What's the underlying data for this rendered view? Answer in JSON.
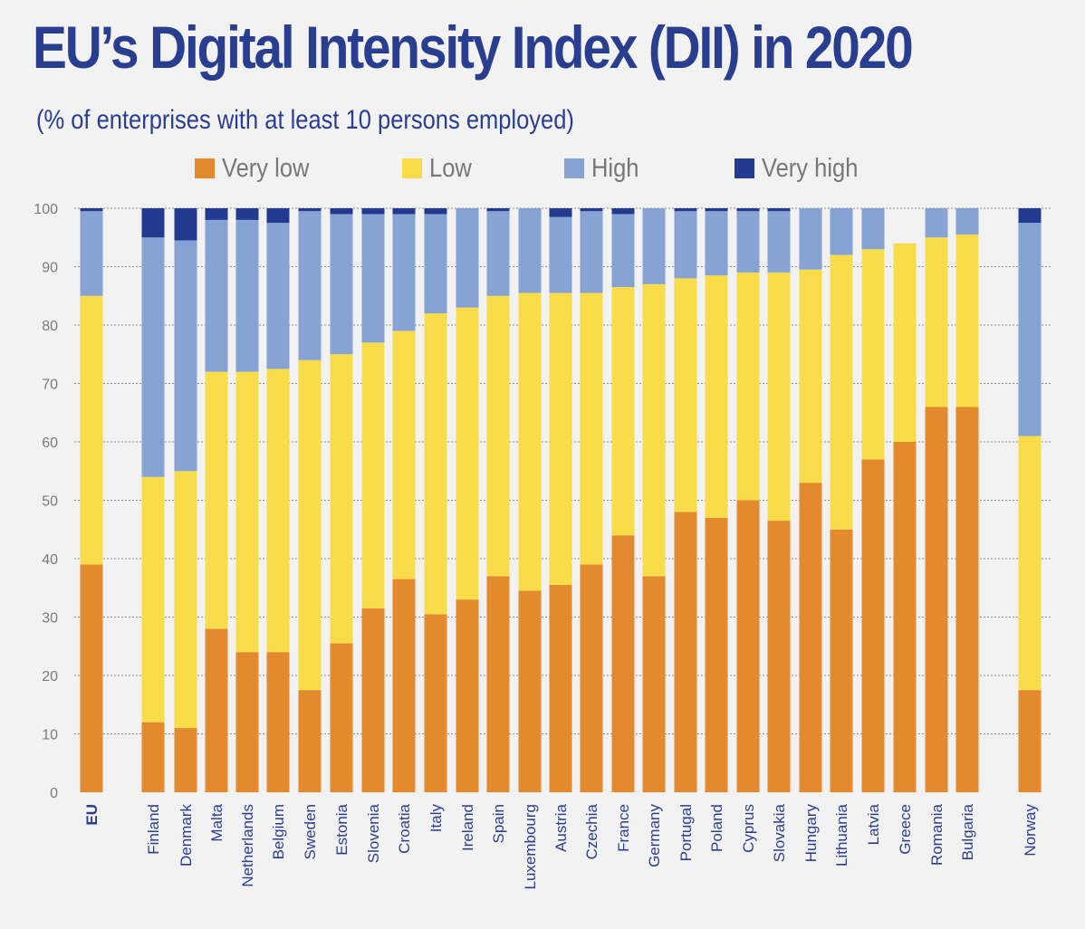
{
  "colors": {
    "very_low": "#e38a2f",
    "low": "#f9dc4a",
    "high": "#86a3d4",
    "very_high": "#223b91",
    "title": "#2a3e8f"
  },
  "chart_data": {
    "type": "bar",
    "stacked": true,
    "title": "EU’s Digital Intensity Index (DII) in 2020",
    "subtitle": "(% of enterprises with at least 10 persons employed)",
    "ylim": [
      0,
      100
    ],
    "yticks": [
      0,
      10,
      20,
      30,
      40,
      50,
      60,
      70,
      80,
      90,
      100
    ],
    "legend_position": "top",
    "categories": [
      "EU",
      "Finland",
      "Denmark",
      "Malta",
      "Netherlands",
      "Belgium",
      "Sweden",
      "Estonia",
      "Slovenia",
      "Croatia",
      "Italy",
      "Ireland",
      "Spain",
      "Luxembourg",
      "Austria",
      "Czechia",
      "France",
      "Germany",
      "Portugal",
      "Poland",
      "Cyprus",
      "Slovakia",
      "Hungary",
      "Lithuania",
      "Latvia",
      "Greece",
      "Romania",
      "Bulgaria",
      "Norway"
    ],
    "series": [
      {
        "name": "Very low",
        "key": "very_low",
        "values": [
          39,
          12,
          11,
          28,
          24,
          24,
          17.5,
          25.5,
          31.5,
          36.5,
          30.5,
          33,
          37,
          34.5,
          35.5,
          39,
          44,
          37,
          48,
          47,
          50,
          46.5,
          53,
          45,
          57,
          60,
          66,
          66,
          17.5
        ]
      },
      {
        "name": "Low",
        "key": "low",
        "values": [
          46,
          42,
          44,
          44,
          48,
          48.5,
          56.5,
          49.5,
          45.5,
          42.5,
          51.5,
          50,
          48,
          51,
          50,
          46.5,
          42.5,
          50,
          40,
          41.5,
          39,
          42.5,
          36.5,
          47,
          36,
          34,
          29,
          29.5,
          43.5
        ]
      },
      {
        "name": "High",
        "key": "high",
        "values": [
          14.5,
          41,
          39.5,
          26,
          26,
          25,
          25.5,
          24,
          22,
          20,
          17,
          17,
          14.5,
          14.5,
          13,
          14,
          12.5,
          13,
          11.5,
          11,
          10.5,
          10.5,
          10.5,
          8,
          7,
          0,
          5,
          4.5,
          36.5
        ]
      },
      {
        "name": "Very high",
        "key": "very_high",
        "values": [
          0.5,
          5,
          5.5,
          2,
          2,
          2.5,
          0.5,
          1,
          1,
          1,
          1,
          0,
          0.5,
          0,
          1.5,
          0.5,
          1,
          0,
          0.5,
          0.5,
          0.5,
          0.5,
          0,
          0,
          0,
          0,
          0,
          0,
          2.5
        ]
      }
    ]
  }
}
